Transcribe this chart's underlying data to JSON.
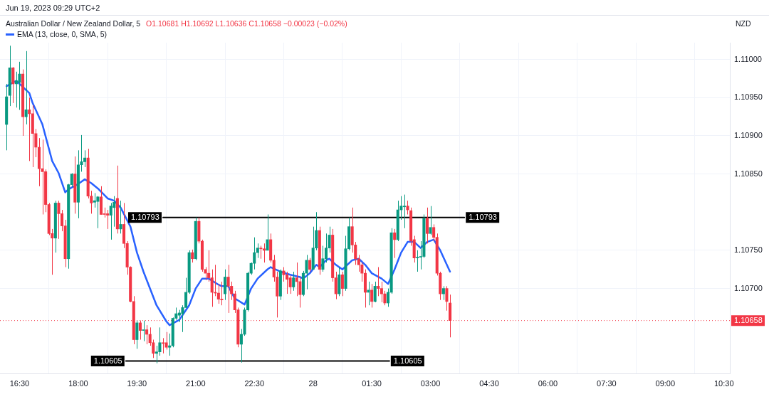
{
  "chart_data": {
    "type": "candlestick",
    "title": "Australian Dollar / New Zealand Dollar, 5",
    "subtitle": "O1.10681 H1.10692 L1.10636 C1.10658 −0.00023 (−0.02%)",
    "ylabel": "NZD",
    "annotations": [
      "Jun 19, 2023 09:29 UTC+2"
    ],
    "xlim": [
      "2023-04-27T16:00",
      "2023-04-28T10:39"
    ],
    "xticks": [
      {
        "value": "2023-04-27T16:30",
        "label": "16:30"
      },
      {
        "value": "2023-04-27T18:00",
        "label": "18:00"
      },
      {
        "value": "2023-04-27T19:30",
        "label": "19:30"
      },
      {
        "value": "2023-04-27T21:00",
        "label": "21:00"
      },
      {
        "value": "2023-04-27T22:30",
        "label": "22:30"
      },
      {
        "value": "2023-04-28T00:00",
        "label": "28"
      },
      {
        "value": "2023-04-28T01:30",
        "label": "01:30"
      },
      {
        "value": "2023-04-28T03:00",
        "label": "03:00"
      },
      {
        "value": "2023-04-28T04:30",
        "label": "04:30"
      },
      {
        "value": "2023-04-28T06:00",
        "label": "06:00"
      },
      {
        "value": "2023-04-28T07:30",
        "label": "07:30"
      },
      {
        "value": "2023-04-28T09:00",
        "label": "09:00"
      },
      {
        "value": "2023-04-28T10:30",
        "label": "10:30"
      }
    ],
    "ylim": [
      1.10588,
      1.11022
    ],
    "yticks": [
      {
        "value": 1.107,
        "label": "1.10700"
      },
      {
        "value": 1.1075,
        "label": "1.10750"
      },
      {
        "value": 1.1085,
        "label": "1.10850"
      },
      {
        "value": 1.109,
        "label": "1.10900"
      },
      {
        "value": 1.1095,
        "label": "1.10950"
      },
      {
        "value": 1.11,
        "label": "1.11000"
      }
    ],
    "grid": true,
    "legend": "top left",
    "marker": "none",
    "ref_lines": [
      {
        "axis": "y",
        "value": 1.10658,
        "label": "1.10658",
        "color": "#f23645",
        "line_style": "dotted"
      }
    ],
    "series": [
      {
        "x": [
          "2023-04-27T16:10",
          "2023-04-27T16:15",
          "2023-04-27T16:20",
          "2023-04-27T16:25",
          "2023-04-27T16:30",
          "2023-04-27T16:35",
          "2023-04-27T16:40",
          "2023-04-27T16:45",
          "2023-04-27T16:50",
          "2023-04-27T16:55",
          "2023-04-27T17:00",
          "2023-04-27T17:05",
          "2023-04-27T17:10",
          "2023-04-27T17:15",
          "2023-04-27T17:20",
          "2023-04-27T17:25",
          "2023-04-27T17:30",
          "2023-04-27T17:35",
          "2023-04-27T17:40",
          "2023-04-27T17:45",
          "2023-04-27T17:50",
          "2023-04-27T17:55",
          "2023-04-27T18:00",
          "2023-04-27T18:05",
          "2023-04-27T18:10",
          "2023-04-27T18:15",
          "2023-04-27T18:20",
          "2023-04-27T18:25",
          "2023-04-27T18:30",
          "2023-04-27T18:35",
          "2023-04-27T18:40",
          "2023-04-27T18:45",
          "2023-04-27T18:50",
          "2023-04-27T18:55",
          "2023-04-27T19:00",
          "2023-04-27T19:05",
          "2023-04-27T19:10",
          "2023-04-27T19:15",
          "2023-04-27T19:20",
          "2023-04-27T19:25",
          "2023-04-27T19:30",
          "2023-04-27T19:35",
          "2023-04-27T19:40",
          "2023-04-27T19:45",
          "2023-04-27T19:50",
          "2023-04-27T19:55",
          "2023-04-27T20:00",
          "2023-04-27T20:05",
          "2023-04-27T20:10",
          "2023-04-27T20:15",
          "2023-04-27T20:20",
          "2023-04-27T20:25",
          "2023-04-27T20:30",
          "2023-04-27T20:35",
          "2023-04-27T20:40",
          "2023-04-27T20:45",
          "2023-04-27T20:50",
          "2023-04-27T20:55",
          "2023-04-27T21:00",
          "2023-04-27T21:05",
          "2023-04-27T21:10",
          "2023-04-27T21:15",
          "2023-04-27T21:20",
          "2023-04-27T21:25",
          "2023-04-27T21:30",
          "2023-04-27T21:35",
          "2023-04-27T21:40",
          "2023-04-27T21:45",
          "2023-04-27T21:50",
          "2023-04-27T21:55",
          "2023-04-27T22:00",
          "2023-04-27T22:05",
          "2023-04-27T22:10",
          "2023-04-27T22:15",
          "2023-04-27T22:20",
          "2023-04-27T22:25",
          "2023-04-27T22:30",
          "2023-04-27T22:35",
          "2023-04-27T22:40",
          "2023-04-27T22:45",
          "2023-04-27T22:50",
          "2023-04-27T22:55",
          "2023-04-27T23:00",
          "2023-04-27T23:05",
          "2023-04-27T23:10",
          "2023-04-27T23:15",
          "2023-04-27T23:20",
          "2023-04-27T23:25",
          "2023-04-27T23:30",
          "2023-04-27T23:35",
          "2023-04-27T23:40",
          "2023-04-27T23:45",
          "2023-04-27T23:50",
          "2023-04-27T23:55",
          "2023-04-28T00:00",
          "2023-04-28T00:05",
          "2023-04-28T00:10",
          "2023-04-28T00:15",
          "2023-04-28T00:20",
          "2023-04-28T00:25",
          "2023-04-28T00:30",
          "2023-04-28T00:35",
          "2023-04-28T00:40",
          "2023-04-28T00:45",
          "2023-04-28T00:50",
          "2023-04-28T00:55",
          "2023-04-28T01:00",
          "2023-04-28T01:05",
          "2023-04-28T01:10",
          "2023-04-28T01:15",
          "2023-04-28T01:20",
          "2023-04-28T01:25",
          "2023-04-28T01:30",
          "2023-04-28T01:35",
          "2023-04-28T01:40",
          "2023-04-28T01:45",
          "2023-04-28T01:50",
          "2023-04-28T01:55",
          "2023-04-28T02:00",
          "2023-04-28T02:05",
          "2023-04-28T02:10",
          "2023-04-28T02:15",
          "2023-04-28T02:20",
          "2023-04-28T02:25",
          "2023-04-28T02:30",
          "2023-04-28T02:35",
          "2023-04-28T02:40",
          "2023-04-28T02:45",
          "2023-04-28T02:50",
          "2023-04-28T02:55",
          "2023-04-28T03:00",
          "2023-04-28T03:05",
          "2023-04-28T03:10",
          "2023-04-28T03:15",
          "2023-04-28T03:20",
          "2023-04-28T03:25",
          "2023-04-28T03:30"
        ],
        "ohlc": [
          [
            1.10915,
            1.10968,
            1.10881,
            1.10951
          ],
          [
            1.10953,
            1.11018,
            1.10939,
            1.10989
          ],
          [
            1.10989,
            1.1099,
            1.10943,
            1.10968
          ],
          [
            1.10968,
            1.10984,
            1.10937,
            1.10972
          ],
          [
            1.1097,
            1.10997,
            1.10934,
            1.10981
          ],
          [
            1.10981,
            1.10987,
            1.109,
            1.10925
          ],
          [
            1.10925,
            1.11011,
            1.10915,
            1.10934
          ],
          [
            1.10934,
            1.1095,
            1.10867,
            1.10929
          ],
          [
            1.10929,
            1.1094,
            1.10859,
            1.10903
          ],
          [
            1.10903,
            1.10909,
            1.10872,
            1.10885
          ],
          [
            1.10885,
            1.10897,
            1.10834,
            1.10857
          ],
          [
            1.10857,
            1.10895,
            1.10797,
            1.10853
          ],
          [
            1.10853,
            1.10856,
            1.108,
            1.1081
          ],
          [
            1.1081,
            1.10812,
            1.1077,
            1.10772
          ],
          [
            1.10772,
            1.10778,
            1.10718,
            1.10766
          ],
          [
            1.10766,
            1.10815,
            1.10747,
            1.10812
          ],
          [
            1.10812,
            1.10815,
            1.10765,
            1.10798
          ],
          [
            1.10798,
            1.10803,
            1.10775,
            1.10782
          ],
          [
            1.10782,
            1.1079,
            1.10728,
            1.10739
          ],
          [
            1.10739,
            1.10837,
            1.10726,
            1.10836
          ],
          [
            1.10836,
            1.10851,
            1.10833,
            1.1085
          ],
          [
            1.1085,
            1.10873,
            1.10798,
            1.10813
          ],
          [
            1.10813,
            1.10881,
            1.10792,
            1.10862
          ],
          [
            1.10862,
            1.10901,
            1.10853,
            1.10866
          ],
          [
            1.10866,
            1.10881,
            1.10859,
            1.10871
          ],
          [
            1.10871,
            1.10883,
            1.10818,
            1.10821
          ],
          [
            1.10821,
            1.10828,
            1.10798,
            1.10812
          ],
          [
            1.10813,
            1.10825,
            1.10806,
            1.10815
          ],
          [
            1.10814,
            1.10821,
            1.10779,
            1.1082
          ],
          [
            1.1082,
            1.10834,
            1.10797,
            1.10797
          ],
          [
            1.10798,
            1.10806,
            1.10793,
            1.10797
          ],
          [
            1.10798,
            1.10803,
            1.10778,
            1.10796
          ],
          [
            1.10796,
            1.10812,
            1.10764,
            1.10808
          ],
          [
            1.10806,
            1.10821,
            1.10781,
            1.10813
          ],
          [
            1.10818,
            1.10861,
            1.10772,
            1.10778
          ],
          [
            1.10778,
            1.10815,
            1.10772,
            1.10784
          ],
          [
            1.10784,
            1.10812,
            1.10753,
            1.10759
          ],
          [
            1.10759,
            1.10762,
            1.10718,
            1.10728
          ],
          [
            1.10728,
            1.10729,
            1.10682,
            1.10683
          ],
          [
            1.10683,
            1.1069,
            1.10627,
            1.10633
          ],
          [
            1.10633,
            1.10658,
            1.10621,
            1.10655
          ],
          [
            1.10655,
            1.10658,
            1.10633,
            1.10645
          ],
          [
            1.10645,
            1.10658,
            1.10631,
            1.10646
          ],
          [
            1.10646,
            1.10652,
            1.10627,
            1.1064
          ],
          [
            1.1064,
            1.10649,
            1.10625,
            1.10629
          ],
          [
            1.10629,
            1.10633,
            1.10609,
            1.10615
          ],
          [
            1.10615,
            1.10625,
            1.10602,
            1.10617
          ],
          [
            1.10617,
            1.10649,
            1.10612,
            1.10629
          ],
          [
            1.10629,
            1.10635,
            1.10615,
            1.10628
          ],
          [
            1.10629,
            1.10643,
            1.1062,
            1.10623
          ],
          [
            1.10623,
            1.10641,
            1.10612,
            1.10625
          ],
          [
            1.10625,
            1.10662,
            1.10623,
            1.10661
          ],
          [
            1.10661,
            1.10675,
            1.10659,
            1.10667
          ],
          [
            1.10665,
            1.10672,
            1.10656,
            1.10668
          ],
          [
            1.10667,
            1.10678,
            1.10643,
            1.10675
          ],
          [
            1.10675,
            1.10714,
            1.10675,
            1.10695
          ],
          [
            1.10695,
            1.1075,
            1.10693,
            1.10747
          ],
          [
            1.10747,
            1.10751,
            1.10734,
            1.10739
          ],
          [
            1.10739,
            1.10793,
            1.10737,
            1.10788
          ],
          [
            1.10788,
            1.10793,
            1.10759,
            1.10762
          ],
          [
            1.10762,
            1.10764,
            1.10722,
            1.10725
          ],
          [
            1.10725,
            1.10728,
            1.10711,
            1.1072
          ],
          [
            1.1072,
            1.1075,
            1.10709,
            1.10714
          ],
          [
            1.10714,
            1.10725,
            1.10676,
            1.10695
          ],
          [
            1.10695,
            1.10731,
            1.1069,
            1.10694
          ],
          [
            1.10694,
            1.10706,
            1.1068,
            1.10686
          ],
          [
            1.10686,
            1.10709,
            1.10678,
            1.10685
          ],
          [
            1.10693,
            1.10725,
            1.10685,
            1.10715
          ],
          [
            1.10715,
            1.10731,
            1.10668,
            1.10703
          ],
          [
            1.10703,
            1.10709,
            1.10685,
            1.10693
          ],
          [
            1.10693,
            1.10697,
            1.10668,
            1.10672
          ],
          [
            1.10672,
            1.10675,
            1.10623,
            1.10627
          ],
          [
            1.10627,
            1.10647,
            1.10603,
            1.1064
          ],
          [
            1.1064,
            1.10675,
            1.10638,
            1.10672
          ],
          [
            1.10672,
            1.10722,
            1.1067,
            1.1072
          ],
          [
            1.1072,
            1.10734,
            1.10718,
            1.10733
          ],
          [
            1.10733,
            1.10767,
            1.10725,
            1.10747
          ],
          [
            1.10747,
            1.10759,
            1.1074,
            1.10753
          ],
          [
            1.10753,
            1.10756,
            1.10739,
            1.10752
          ],
          [
            1.10752,
            1.10759,
            1.10734,
            1.1075
          ],
          [
            1.1075,
            1.10797,
            1.1075,
            1.10764
          ],
          [
            1.10764,
            1.10772,
            1.10734,
            1.10737
          ],
          [
            1.10737,
            1.10744,
            1.10709,
            1.10715
          ],
          [
            1.10715,
            1.10722,
            1.10662,
            1.1069
          ],
          [
            1.1069,
            1.10725,
            1.10685,
            1.10723
          ],
          [
            1.10723,
            1.10728,
            1.10709,
            1.10718
          ],
          [
            1.10718,
            1.10722,
            1.10693,
            1.10712
          ],
          [
            1.10714,
            1.10717,
            1.10693,
            1.10702
          ],
          [
            1.10702,
            1.10722,
            1.10697,
            1.10714
          ],
          [
            1.10714,
            1.10734,
            1.1069,
            1.10709
          ],
          [
            1.10709,
            1.10715,
            1.10675,
            1.10692
          ],
          [
            1.10692,
            1.10723,
            1.1069,
            1.1072
          ],
          [
            1.1072,
            1.10744,
            1.10699,
            1.10737
          ],
          [
            1.10737,
            1.1074,
            1.10722,
            1.10725
          ],
          [
            1.10725,
            1.10781,
            1.10725,
            1.10753
          ],
          [
            1.10753,
            1.108,
            1.1075,
            1.10776
          ],
          [
            1.10776,
            1.10781,
            1.10718,
            1.10725
          ],
          [
            1.10725,
            1.10756,
            1.10722,
            1.10739
          ],
          [
            1.10739,
            1.10772,
            1.10734,
            1.10753
          ],
          [
            1.10753,
            1.10781,
            1.10747,
            1.1077
          ],
          [
            1.1077,
            1.10778,
            1.10709,
            1.10714
          ],
          [
            1.10714,
            1.10722,
            1.10686,
            1.10693
          ],
          [
            1.10693,
            1.10728,
            1.1069,
            1.10718
          ],
          [
            1.10718,
            1.10722,
            1.1069,
            1.107
          ],
          [
            1.107,
            1.10769,
            1.10697,
            1.10752
          ],
          [
            1.10752,
            1.10793,
            1.1075,
            1.10781
          ],
          [
            1.10781,
            1.10806,
            1.10747,
            1.10757
          ],
          [
            1.10757,
            1.10761,
            1.10731,
            1.10739
          ],
          [
            1.10739,
            1.10744,
            1.10722,
            1.10731
          ],
          [
            1.10731,
            1.10734,
            1.10709,
            1.1072
          ],
          [
            1.1072,
            1.10725,
            1.10675,
            1.10695
          ],
          [
            1.10695,
            1.10709,
            1.10678,
            1.10698
          ],
          [
            1.10698,
            1.10706,
            1.10675,
            1.10683
          ],
          [
            1.10683,
            1.10709,
            1.10682,
            1.10703
          ],
          [
            1.10703,
            1.10728,
            1.1069,
            1.107
          ],
          [
            1.107,
            1.10709,
            1.10682,
            1.10693
          ],
          [
            1.10693,
            1.10697,
            1.10678,
            1.10681
          ],
          [
            1.10681,
            1.107,
            1.10676,
            1.10695
          ],
          [
            1.10695,
            1.10779,
            1.10693,
            1.10773
          ],
          [
            1.10773,
            1.10778,
            1.1074,
            1.10764
          ],
          [
            1.10764,
            1.10815,
            1.10762,
            1.10803
          ],
          [
            1.10803,
            1.10821,
            1.1079,
            1.10808
          ],
          [
            1.10807,
            1.10823,
            1.10779,
            1.10808
          ],
          [
            1.10808,
            1.10815,
            1.10797,
            1.10803
          ],
          [
            1.10802,
            1.10806,
            1.10756,
            1.10762
          ],
          [
            1.10764,
            1.10769,
            1.10734,
            1.1074
          ],
          [
            1.1074,
            1.1075,
            1.10722,
            1.10741
          ],
          [
            1.10741,
            1.10762,
            1.10725,
            1.10742
          ],
          [
            1.10742,
            1.10797,
            1.1074,
            1.10792
          ],
          [
            1.10792,
            1.10806,
            1.10759,
            1.10772
          ],
          [
            1.10772,
            1.10808,
            1.1077,
            1.1078
          ],
          [
            1.1078,
            1.10784,
            1.10762,
            1.10767
          ],
          [
            1.10767,
            1.10772,
            1.10717,
            1.1072
          ],
          [
            1.1072,
            1.10722,
            1.10685,
            1.10693
          ],
          [
            1.10693,
            1.10703,
            1.10685,
            1.107
          ],
          [
            1.107,
            1.10703,
            1.10671,
            1.10683
          ],
          [
            1.10681,
            1.10692,
            1.10636,
            1.10658
          ]
        ],
        "colors": [
          "#089981",
          "#089981",
          "#f23645",
          "#089981",
          "#089981",
          "#f23645",
          "#089981",
          "#f23645",
          "#f23645",
          "#f23645",
          "#f23645",
          "#f23645",
          "#f23645",
          "#f23645",
          "#f23645",
          "#089981",
          "#f23645",
          "#f23645",
          "#f23645",
          "#089981",
          "#089981",
          "#f23645",
          "#089981",
          "#089981",
          "#089981",
          "#f23645",
          "#f23645",
          "#089981",
          "#089981",
          "#f23645",
          "#f23645",
          "#f23645",
          "#089981",
          "#089981",
          "#f23645",
          "#089981",
          "#f23645",
          "#f23645",
          "#f23645",
          "#f23645",
          "#089981",
          "#f23645",
          "#089981",
          "#f23645",
          "#f23645",
          "#f23645",
          "#089981",
          "#089981",
          "#f23645",
          "#f23645",
          "#089981",
          "#089981",
          "#089981",
          "#089981",
          "#089981",
          "#089981",
          "#089981",
          "#f23645",
          "#089981",
          "#f23645",
          "#f23645",
          "#f23645",
          "#f23645",
          "#f23645",
          "#f23645",
          "#f23645",
          "#f23645",
          "#089981",
          "#f23645",
          "#f23645",
          "#f23645",
          "#f23645",
          "#089981",
          "#089981",
          "#089981",
          "#089981",
          "#089981",
          "#089981",
          "#f23645",
          "#f23645",
          "#089981",
          "#f23645",
          "#f23645",
          "#f23645",
          "#089981",
          "#f23645",
          "#f23645",
          "#f23645",
          "#089981",
          "#f23645",
          "#f23645",
          "#089981",
          "#089981",
          "#f23645",
          "#089981",
          "#089981",
          "#f23645",
          "#089981",
          "#089981",
          "#089981",
          "#f23645",
          "#f23645",
          "#089981",
          "#f23645",
          "#089981",
          "#089981",
          "#f23645",
          "#f23645",
          "#f23645",
          "#f23645",
          "#f23645",
          "#089981",
          "#f23645",
          "#089981",
          "#f23645",
          "#f23645",
          "#f23645",
          "#089981",
          "#089981",
          "#f23645",
          "#089981",
          "#089981",
          "#089981",
          "#f23645",
          "#f23645",
          "#f23645",
          "#089981",
          "#089981",
          "#089981",
          "#f23645",
          "#089981",
          "#f23645",
          "#f23645",
          "#f23645",
          "#089981",
          "#f23645",
          "#f23645"
        ]
      },
      {
        "type": "line",
        "name": "EMA (13, close, 0, SMA, 5)",
        "color": "#2962ff",
        "x": [
          "2023-04-27T16:10",
          "2023-04-27T16:25",
          "2023-04-27T16:35",
          "2023-04-27T16:45",
          "2023-04-27T16:50",
          "2023-04-27T17:05",
          "2023-04-27T17:20",
          "2023-04-27T17:30",
          "2023-04-27T17:40",
          "2023-04-27T17:45",
          "2023-04-27T18:00",
          "2023-04-27T18:10",
          "2023-04-27T18:20",
          "2023-04-27T18:30",
          "2023-04-27T18:45",
          "2023-04-27T18:55",
          "2023-04-27T19:05",
          "2023-04-27T19:20",
          "2023-04-27T19:30",
          "2023-04-27T19:40",
          "2023-04-27T20:00",
          "2023-04-27T20:15",
          "2023-04-27T20:20",
          "2023-04-27T20:35",
          "2023-04-27T20:50",
          "2023-04-27T21:00",
          "2023-04-27T21:10",
          "2023-04-27T21:20",
          "2023-04-27T21:35",
          "2023-04-27T21:40",
          "2023-04-27T21:50",
          "2023-04-27T22:00",
          "2023-04-27T22:15",
          "2023-04-27T22:25",
          "2023-04-27T22:35",
          "2023-04-27T22:50",
          "2023-04-27T22:55",
          "2023-04-27T23:10",
          "2023-04-27T23:25",
          "2023-04-27T23:40",
          "2023-04-27T23:45",
          "2023-04-27T23:55",
          "2023-04-28T00:05",
          "2023-04-28T00:10",
          "2023-04-28T00:20",
          "2023-04-28T00:25",
          "2023-04-28T00:35",
          "2023-04-28T00:45",
          "2023-04-28T01:00",
          "2023-04-28T01:10",
          "2023-04-28T01:20",
          "2023-04-28T01:30",
          "2023-04-28T01:45",
          "2023-04-28T01:55",
          "2023-04-28T02:05",
          "2023-04-28T02:15",
          "2023-04-28T02:25",
          "2023-04-28T02:35",
          "2023-04-28T02:45",
          "2023-04-28T02:55",
          "2023-04-28T03:05",
          "2023-04-28T03:15",
          "2023-04-28T03:30"
        ],
        "values": [
          1.10965,
          1.10972,
          1.10964,
          1.10956,
          1.10943,
          1.10915,
          1.10867,
          1.10851,
          1.10826,
          1.1083,
          1.10837,
          1.10843,
          1.10838,
          1.10831,
          1.10818,
          1.10815,
          1.10806,
          1.10781,
          1.10747,
          1.10722,
          1.10678,
          1.10657,
          1.10652,
          1.10659,
          1.10678,
          1.107,
          1.10713,
          1.10713,
          1.10705,
          1.10703,
          1.10703,
          1.10687,
          1.10679,
          1.107,
          1.10713,
          1.10725,
          1.10728,
          1.10722,
          1.10718,
          1.10715,
          1.10713,
          1.1072,
          1.10731,
          1.10728,
          1.10737,
          1.10739,
          1.10731,
          1.10725,
          1.10737,
          1.10739,
          1.10731,
          1.1072,
          1.10713,
          1.10706,
          1.10725,
          1.10747,
          1.10761,
          1.10761,
          1.10753,
          1.10761,
          1.10764,
          1.1075,
          1.10722
        ]
      },
      {
        "type": "line",
        "color": "#000000",
        "x": [
          "2023-04-27T20:10",
          "2023-04-28T03:52"
        ],
        "values": [
          1.10793,
          1.10793
        ],
        "value_labels": [
          "1.10793",
          "1.10793"
        ]
      },
      {
        "type": "line",
        "color": "#000000",
        "x": [
          "2023-04-27T19:13",
          "2023-04-28T01:57"
        ],
        "values": [
          1.10605,
          1.10605
        ],
        "value_labels": [
          "1.10605",
          "1.10605"
        ]
      }
    ]
  }
}
